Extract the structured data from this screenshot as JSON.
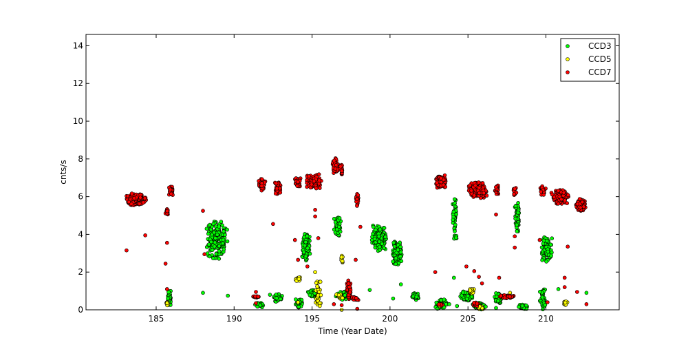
{
  "chart_data": {
    "type": "scatter",
    "title": "",
    "xlabel": "Time (Year Date)",
    "ylabel": "cnts/s",
    "xlim": [
      180.5,
      214.7
    ],
    "ylim": [
      0,
      14.6
    ],
    "xticks": [
      185,
      190,
      195,
      200,
      205,
      210
    ],
    "yticks": [
      0,
      2,
      4,
      6,
      8,
      10,
      12,
      14
    ],
    "grid": false,
    "legend_position": "top-right",
    "series": [
      {
        "name": "CCD3",
        "color": "#00ff00",
        "clusters": [
          {
            "x": [
              185.7,
              186.0
            ],
            "y": [
              0.1,
              1.1
            ],
            "n": 40
          },
          {
            "x": [
              188.2,
              189.6
            ],
            "y": [
              2.6,
              4.8
            ],
            "n": 190
          },
          {
            "x": [
              191.3,
              192.0
            ],
            "y": [
              0.1,
              0.4
            ],
            "n": 30
          },
          {
            "x": [
              192.5,
              193.1
            ],
            "y": [
              0.4,
              0.9
            ],
            "n": 40
          },
          {
            "x": [
              193.9,
              194.4
            ],
            "y": [
              0.1,
              0.6
            ],
            "n": 40
          },
          {
            "x": [
              194.3,
              194.9
            ],
            "y": [
              2.6,
              4.1
            ],
            "n": 110
          },
          {
            "x": [
              194.7,
              195.5
            ],
            "y": [
              0.6,
              1.1
            ],
            "n": 50
          },
          {
            "x": [
              196.4,
              196.9
            ],
            "y": [
              3.8,
              5.0
            ],
            "n": 40
          },
          {
            "x": [
              196.5,
              197.3
            ],
            "y": [
              0.5,
              1.0
            ],
            "n": 40
          },
          {
            "x": [
              198.8,
              199.8
            ],
            "y": [
              3.0,
              4.5
            ],
            "n": 190
          },
          {
            "x": [
              200.1,
              200.8
            ],
            "y": [
              2.3,
              3.7
            ],
            "n": 110
          },
          {
            "x": [
              201.4,
              201.9
            ],
            "y": [
              0.5,
              0.9
            ],
            "n": 50
          },
          {
            "x": [
              202.9,
              203.7
            ],
            "y": [
              0.0,
              0.6
            ],
            "n": 60
          },
          {
            "x": [
              204.0,
              204.3
            ],
            "y": [
              3.5,
              6.2
            ],
            "n": 50
          },
          {
            "x": [
              204.5,
              205.3
            ],
            "y": [
              0.4,
              1.1
            ],
            "n": 70
          },
          {
            "x": [
              205.3,
              206.2
            ],
            "y": [
              0.0,
              0.4
            ],
            "n": 60
          },
          {
            "x": [
              206.7,
              207.2
            ],
            "y": [
              0.3,
              0.9
            ],
            "n": 40
          },
          {
            "x": [
              208.0,
              208.3
            ],
            "y": [
              3.9,
              6.0
            ],
            "n": 60
          },
          {
            "x": [
              208.2,
              208.9
            ],
            "y": [
              0.0,
              0.3
            ],
            "n": 40
          },
          {
            "x": [
              209.6,
              210.0
            ],
            "y": [
              0.0,
              1.2
            ],
            "n": 40
          },
          {
            "x": [
              209.7,
              210.4
            ],
            "y": [
              2.4,
              4.0
            ],
            "n": 110
          }
        ],
        "points": [
          {
            "x": 188.0,
            "y": 0.9
          },
          {
            "x": 189.6,
            "y": 0.75
          },
          {
            "x": 192.3,
            "y": 0.8
          },
          {
            "x": 198.7,
            "y": 1.05
          },
          {
            "x": 200.2,
            "y": 0.6
          },
          {
            "x": 200.7,
            "y": 1.35
          },
          {
            "x": 203.8,
            "y": 0.3
          },
          {
            "x": 204.1,
            "y": 1.7
          },
          {
            "x": 204.3,
            "y": 0.2
          },
          {
            "x": 210.8,
            "y": 1.1
          },
          {
            "x": 212.6,
            "y": 0.9
          },
          {
            "x": 206.8,
            "y": 0.1
          }
        ]
      },
      {
        "name": "CCD5",
        "color": "#ffff00",
        "clusters": [
          {
            "x": [
              185.6,
              185.8
            ],
            "y": [
              0.2,
              0.5
            ],
            "n": 10
          },
          {
            "x": [
              193.9,
              194.3
            ],
            "y": [
              1.5,
              1.8
            ],
            "n": 15
          },
          {
            "x": [
              195.2,
              195.6
            ],
            "y": [
              0.1,
              1.7
            ],
            "n": 35
          },
          {
            "x": [
              196.5,
              197.0
            ],
            "y": [
              0.6,
              0.9
            ],
            "n": 15
          },
          {
            "x": [
              196.8,
              197.0
            ],
            "y": [
              2.4,
              2.9
            ],
            "n": 10
          },
          {
            "x": [
              205.0,
              205.5
            ],
            "y": [
              0.8,
              1.2
            ],
            "n": 15
          },
          {
            "x": [
              205.6,
              206.1
            ],
            "y": [
              0.0,
              0.3
            ],
            "n": 15
          },
          {
            "x": [
              211.1,
              211.4
            ],
            "y": [
              0.1,
              0.6
            ],
            "n": 12
          }
        ],
        "points": [
          {
            "x": 194.1,
            "y": 0.4
          },
          {
            "x": 195.2,
            "y": 2.0
          },
          {
            "x": 196.9,
            "y": 0.0
          },
          {
            "x": 203.2,
            "y": 0.2
          },
          {
            "x": 207.7,
            "y": 0.9
          }
        ]
      },
      {
        "name": "CCD7",
        "color": "#ff0000",
        "clusters": [
          {
            "x": [
              183.0,
              184.4
            ],
            "y": [
              5.5,
              6.2
            ],
            "n": 190
          },
          {
            "x": [
              185.6,
              185.8
            ],
            "y": [
              5.0,
              5.4
            ],
            "n": 15
          },
          {
            "x": [
              185.8,
              186.1
            ],
            "y": [
              6.0,
              6.6
            ],
            "n": 50
          },
          {
            "x": [
              191.5,
              192.0
            ],
            "y": [
              6.3,
              7.0
            ],
            "n": 60
          },
          {
            "x": [
              192.6,
              193.0
            ],
            "y": [
              6.1,
              6.8
            ],
            "n": 50
          },
          {
            "x": [
              193.9,
              194.3
            ],
            "y": [
              6.5,
              7.0
            ],
            "n": 40
          },
          {
            "x": [
              194.6,
              195.6
            ],
            "y": [
              6.4,
              7.2
            ],
            "n": 150
          },
          {
            "x": [
              196.3,
              196.7
            ],
            "y": [
              7.1,
              8.1
            ],
            "n": 40
          },
          {
            "x": [
              196.8,
              197.0
            ],
            "y": [
              7.0,
              7.7
            ],
            "n": 15
          },
          {
            "x": [
              197.2,
              197.5
            ],
            "y": [
              0.4,
              1.7
            ],
            "n": 40
          },
          {
            "x": [
              197.5,
              198.0
            ],
            "y": [
              0.5,
              0.7
            ],
            "n": 25
          },
          {
            "x": [
              197.8,
              198.0
            ],
            "y": [
              5.5,
              6.2
            ],
            "n": 20
          },
          {
            "x": [
              202.9,
              203.6
            ],
            "y": [
              6.4,
              7.2
            ],
            "n": 100
          },
          {
            "x": [
              205.0,
              206.3
            ],
            "y": [
              5.9,
              6.8
            ],
            "n": 220
          },
          {
            "x": [
              206.7,
              207.0
            ],
            "y": [
              6.0,
              6.7
            ],
            "n": 20
          },
          {
            "x": [
              207.0,
              208.0
            ],
            "y": [
              0.6,
              0.8
            ],
            "n": 60
          },
          {
            "x": [
              207.9,
              208.1
            ],
            "y": [
              6.0,
              6.5
            ],
            "n": 15
          },
          {
            "x": [
              209.6,
              210.0
            ],
            "y": [
              6.0,
              6.6
            ],
            "n": 40
          },
          {
            "x": [
              210.3,
              211.5
            ],
            "y": [
              5.6,
              6.4
            ],
            "n": 150
          },
          {
            "x": [
              211.9,
              212.6
            ],
            "y": [
              5.2,
              5.9
            ],
            "n": 100
          },
          {
            "x": [
              191.1,
              191.6
            ],
            "y": [
              0.6,
              0.8
            ],
            "n": 15
          },
          {
            "x": [
              203.0,
              203.4
            ],
            "y": [
              0.2,
              0.4
            ],
            "n": 15
          },
          {
            "x": [
              205.3,
              205.7
            ],
            "y": [
              0.2,
              0.4
            ],
            "n": 15
          }
        ],
        "points": [
          {
            "x": 183.1,
            "y": 3.15
          },
          {
            "x": 184.3,
            "y": 3.95
          },
          {
            "x": 185.6,
            "y": 2.45
          },
          {
            "x": 185.7,
            "y": 3.55
          },
          {
            "x": 185.7,
            "y": 1.1
          },
          {
            "x": 188.0,
            "y": 5.25
          },
          {
            "x": 188.1,
            "y": 2.95
          },
          {
            "x": 191.4,
            "y": 0.35
          },
          {
            "x": 191.4,
            "y": 0.95
          },
          {
            "x": 192.5,
            "y": 4.55
          },
          {
            "x": 193.9,
            "y": 3.7
          },
          {
            "x": 194.1,
            "y": 2.65
          },
          {
            "x": 194.7,
            "y": 2.3
          },
          {
            "x": 195.2,
            "y": 5.3
          },
          {
            "x": 195.2,
            "y": 4.95
          },
          {
            "x": 195.4,
            "y": 3.8
          },
          {
            "x": 196.4,
            "y": 0.3
          },
          {
            "x": 196.9,
            "y": 0.25
          },
          {
            "x": 197.8,
            "y": 2.65
          },
          {
            "x": 198.1,
            "y": 4.4
          },
          {
            "x": 197.9,
            "y": 0.05
          },
          {
            "x": 202.9,
            "y": 2.0
          },
          {
            "x": 204.9,
            "y": 2.3
          },
          {
            "x": 205.4,
            "y": 2.05
          },
          {
            "x": 205.7,
            "y": 1.75
          },
          {
            "x": 205.9,
            "y": 1.4
          },
          {
            "x": 206.8,
            "y": 5.05
          },
          {
            "x": 207.0,
            "y": 1.7
          },
          {
            "x": 208.0,
            "y": 3.3
          },
          {
            "x": 208.0,
            "y": 3.9
          },
          {
            "x": 209.6,
            "y": 3.7
          },
          {
            "x": 210.1,
            "y": 0.4
          },
          {
            "x": 211.2,
            "y": 1.7
          },
          {
            "x": 211.2,
            "y": 1.2
          },
          {
            "x": 211.4,
            "y": 3.35
          },
          {
            "x": 212.0,
            "y": 0.95
          },
          {
            "x": 212.6,
            "y": 0.3
          }
        ]
      }
    ]
  }
}
